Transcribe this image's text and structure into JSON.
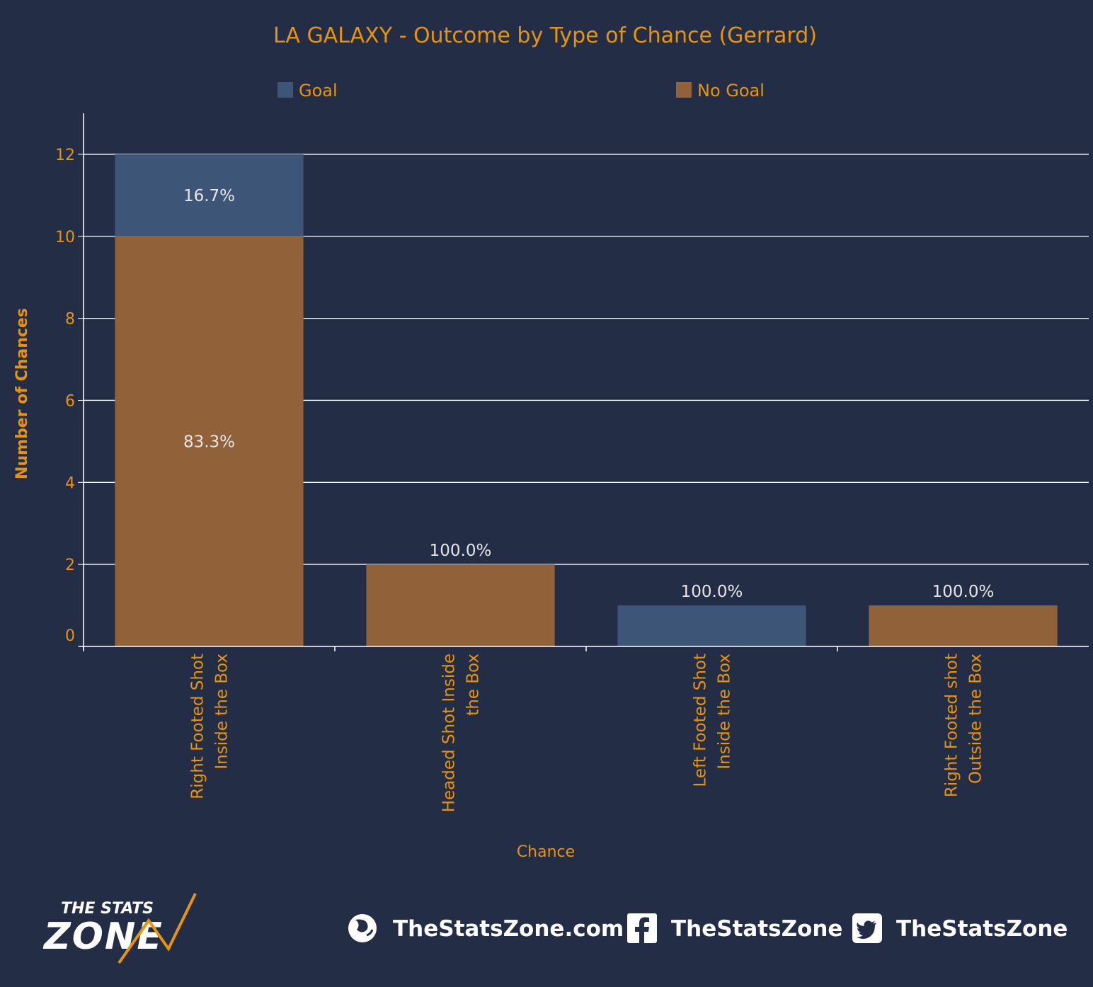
{
  "chart_data": {
    "type": "bar",
    "stacked": true,
    "title": "LA GALAXY - Outcome by Type of Chance (Gerrard)",
    "xlabel": "Chance",
    "ylabel": "Number of Chances",
    "ylim": [
      0,
      13
    ],
    "yticks": [
      0,
      2,
      4,
      6,
      8,
      10,
      12
    ],
    "grid": true,
    "legend_position": "top",
    "categories": [
      [
        "Right Footed Shot",
        "Inside the Box"
      ],
      [
        "Headed Shot Inside",
        "the Box"
      ],
      [
        "Left Footed Shot",
        "Inside the Box"
      ],
      [
        "Right Footed shot",
        "Outside the Box"
      ]
    ],
    "series": [
      {
        "name": "No Goal",
        "color": "#91613a",
        "values": [
          10,
          2,
          0,
          1
        ],
        "labels": [
          "83.3%",
          "100.0%",
          "",
          "100.0%"
        ]
      },
      {
        "name": "Goal",
        "color": "#3d5678",
        "values": [
          2,
          0,
          1,
          0
        ],
        "labels": [
          "16.7%",
          "",
          "100.0%",
          ""
        ]
      }
    ],
    "colors": {
      "background": "#232d46",
      "accent_text": "#e8930c",
      "data_label": "#e6e6e6",
      "grid": "#ffffff"
    }
  },
  "branding": {
    "logo_line1": "THE STATS",
    "logo_line2": "ZONE",
    "website": "TheStatsZone.com",
    "facebook": "TheStatsZone",
    "twitter": "TheStatsZone",
    "icons": [
      "globe-icon",
      "facebook-icon",
      "twitter-icon"
    ]
  }
}
